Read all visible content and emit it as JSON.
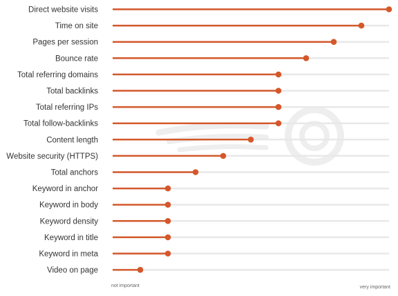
{
  "chart_data": {
    "type": "lollipop",
    "orientation": "horizontal",
    "categories": [
      "Direct website visits",
      "Time on site",
      "Pages per session",
      "Bounce rate",
      "Total referring domains",
      "Total backlinks",
      "Total referring IPs",
      "Total follow-backlinks",
      "Content length",
      "Website security (HTTPS)",
      "Total anchors",
      "Keyword in anchor",
      "Keyword in body",
      "Keyword density",
      "Keyword in title",
      "Keyword in meta",
      "Video on page"
    ],
    "values": [
      10,
      9,
      8,
      7,
      6,
      6,
      6,
      6,
      5,
      4,
      3,
      2,
      2,
      2,
      2,
      2,
      1
    ],
    "xlim": [
      0,
      10
    ],
    "axis_min_label": "not important",
    "axis_max_label": "very important",
    "grid": false,
    "colors": {
      "stem": "#d4582b",
      "dot": "#d4582b",
      "track": "#e8e8e8",
      "label": "#333333",
      "watermark": "#eeeeee"
    },
    "watermark_icon": "semrush-logo-icon"
  }
}
